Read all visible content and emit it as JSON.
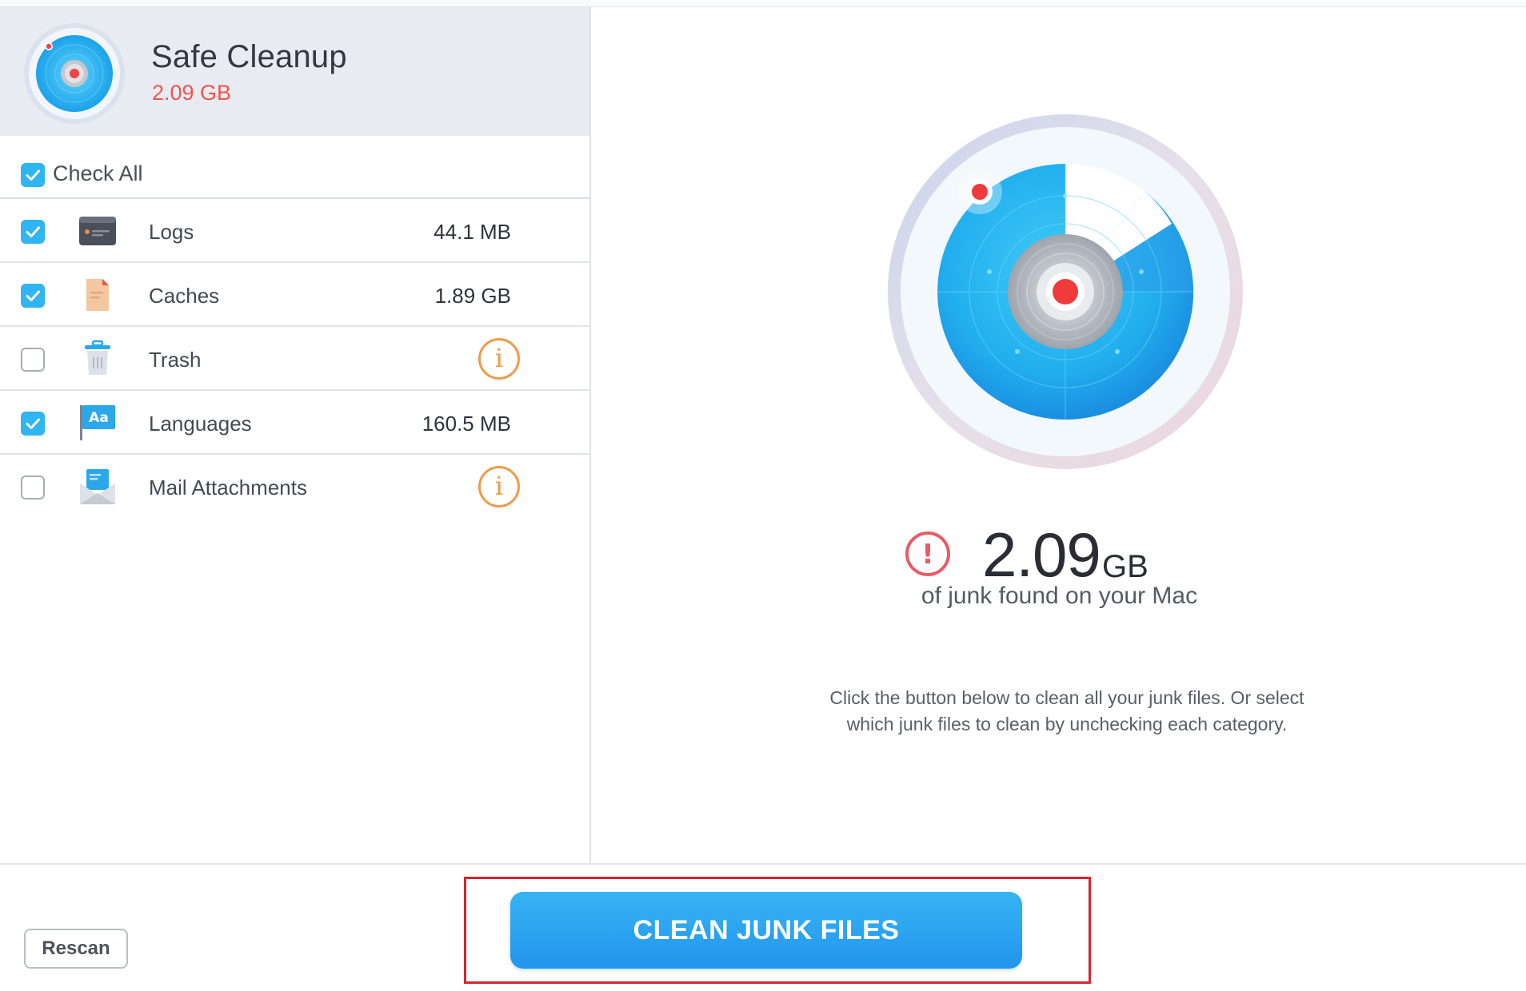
{
  "header": {
    "title": "Safe Cleanup",
    "total_size": "2.09 GB"
  },
  "check_all": {
    "label": "Check All",
    "checked": true
  },
  "items": [
    {
      "label": "Logs",
      "size": "44.1 MB",
      "checked": true,
      "icon": "logs-icon",
      "show_info": false
    },
    {
      "label": "Caches",
      "size": "1.89 GB",
      "checked": true,
      "icon": "caches-icon",
      "show_info": false
    },
    {
      "label": "Trash",
      "size": "",
      "checked": false,
      "icon": "trash-icon",
      "show_info": true
    },
    {
      "label": "Languages",
      "size": "160.5 MB",
      "checked": true,
      "icon": "languages-icon",
      "show_info": true
    },
    {
      "label": "Mail Attachments",
      "size": "",
      "checked": false,
      "icon": "mail-attachments-icon",
      "show_info": true
    }
  ],
  "result": {
    "value": "2.09",
    "unit": "GB",
    "caption": "of junk found on your Mac"
  },
  "hint": "Click the button below to clean all your junk files. Or select which junk files to clean by unchecking each category.",
  "languages_icon_text": "Aa",
  "info_glyph": "i",
  "warning_glyph": "!",
  "buttons": {
    "rescan": "Rescan",
    "clean": "CLEAN JUNK FILES"
  },
  "colors": {
    "accent": "#2fb5f1",
    "danger": "#f0554d",
    "info": "#f09a47",
    "highlight": "#d7262f"
  }
}
